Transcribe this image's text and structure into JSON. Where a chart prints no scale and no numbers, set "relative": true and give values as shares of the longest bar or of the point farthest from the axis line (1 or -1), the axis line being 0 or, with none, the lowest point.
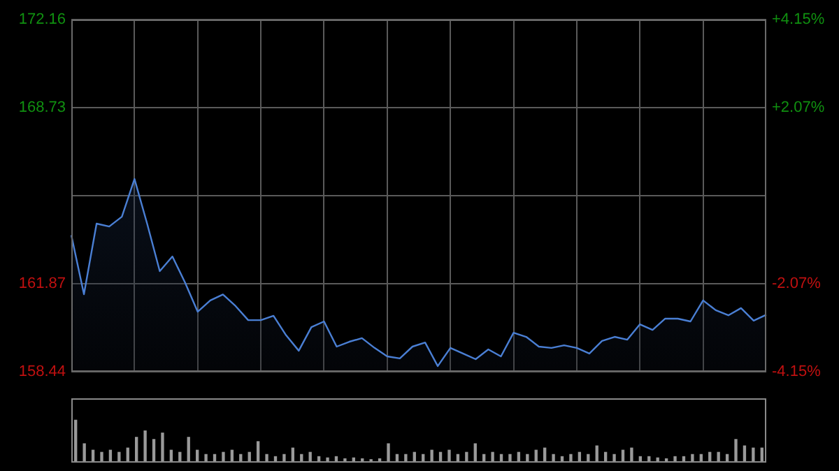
{
  "chart_data": [
    {
      "type": "area",
      "categories": [
        null,
        null,
        null,
        null,
        null,
        null,
        null,
        null,
        null,
        null,
        null,
        null,
        null,
        null,
        null,
        null,
        null,
        null,
        null,
        null,
        null,
        null,
        null,
        null,
        null,
        null,
        null,
        null,
        null,
        null,
        null,
        null,
        null,
        null,
        null,
        null,
        null,
        null,
        null,
        null,
        null,
        null,
        null,
        null,
        null,
        null,
        null,
        null,
        null,
        null,
        null,
        null,
        null,
        null,
        null,
        null
      ],
      "series": [
        {
          "color": "#4a7fd4",
          "values": [
            163.76,
            161.46,
            164.21,
            164.1,
            164.48,
            165.95,
            164.21,
            162.36,
            162.93,
            161.92,
            160.78,
            161.22,
            161.45,
            161.0,
            160.45,
            160.45,
            160.62,
            159.86,
            159.26,
            160.18,
            160.4,
            159.42,
            159.61,
            159.75,
            159.37,
            159.04,
            158.96,
            159.42,
            159.58,
            158.66,
            159.37,
            159.15,
            158.93,
            159.31,
            159.04,
            159.96,
            159.8,
            159.42,
            159.37,
            159.47,
            159.37,
            159.15,
            159.64,
            159.8,
            159.69,
            160.29,
            160.07,
            160.51,
            160.51,
            160.4,
            161.22,
            160.84,
            160.64,
            160.92,
            160.43,
            160.66
          ]
        }
      ],
      "ylim": [
        158.44,
        172.16
      ],
      "yticks": [
        158.44,
        161.87,
        {
          "value": 165.3,
          "label": null
        },
        168.73,
        172.16
      ],
      "y2lim": [
        -4.15,
        4.15
      ],
      "y2ticks": [
        {
          "value": -4.15,
          "label": "-4.15%"
        },
        {
          "value": -2.07,
          "label": "-2.07%"
        },
        {
          "value": 0,
          "label": null
        },
        {
          "value": 2.07,
          "label": "+2.07%"
        },
        {
          "value": 4.15,
          "label": "+4.15%"
        }
      ],
      "grid": true,
      "tick_labels": "y"
    },
    {
      "type": "bar",
      "relative": true,
      "color": "#9a9a9a",
      "categories": [
        null,
        null,
        null,
        null,
        null,
        null,
        null,
        null,
        null,
        null,
        null,
        null,
        null,
        null,
        null,
        null,
        null,
        null,
        null,
        null,
        null,
        null,
        null,
        null,
        null,
        null,
        null,
        null,
        null,
        null,
        null,
        null,
        null,
        null,
        null,
        null,
        null,
        null,
        null,
        null,
        null,
        null,
        null,
        null,
        null,
        null,
        null,
        null,
        null,
        null,
        null,
        null,
        null,
        null,
        null,
        null,
        null,
        null,
        null,
        null,
        null,
        null,
        null,
        null,
        null,
        null,
        null,
        null,
        null,
        null,
        null,
        null,
        null,
        null,
        null,
        null,
        null,
        null,
        null,
        null
      ],
      "values": [
        1.0,
        0.45,
        0.3,
        0.25,
        0.3,
        0.25,
        0.35,
        0.6,
        0.75,
        0.55,
        0.7,
        0.3,
        0.25,
        0.6,
        0.3,
        0.2,
        0.2,
        0.25,
        0.3,
        0.2,
        0.25,
        0.5,
        0.2,
        0.15,
        0.2,
        0.35,
        0.2,
        0.25,
        0.15,
        0.12,
        0.15,
        0.1,
        0.12,
        0.1,
        0.08,
        0.1,
        0.45,
        0.2,
        0.2,
        0.25,
        0.2,
        0.3,
        0.25,
        0.3,
        0.2,
        0.25,
        0.45,
        0.2,
        0.25,
        0.2,
        0.2,
        0.25,
        0.2,
        0.3,
        0.35,
        0.2,
        0.15,
        0.2,
        0.25,
        0.2,
        0.4,
        0.25,
        0.2,
        0.3,
        0.35,
        0.15,
        0.15,
        0.12,
        0.1,
        0.15,
        0.15,
        0.2,
        0.2,
        0.25,
        0.25,
        0.2,
        0.55,
        0.4,
        0.35,
        0.35
      ]
    }
  ]
}
